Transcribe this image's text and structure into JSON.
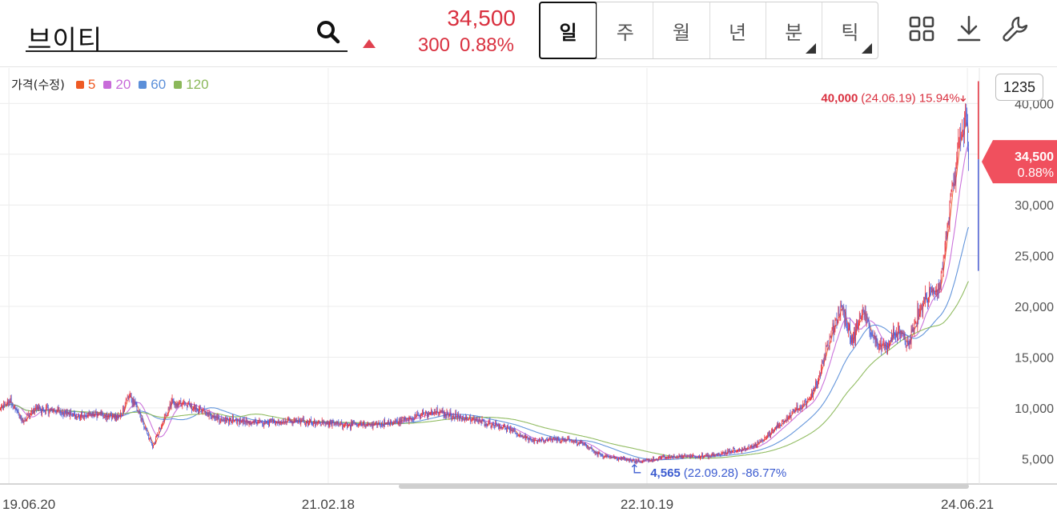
{
  "header": {
    "stock_name": "브이티",
    "price": "34,500",
    "change_value": "300",
    "change_pct": "0.88%",
    "change_color": "#d9303f",
    "direction_icon": "triangle-up-icon",
    "search_icon": "search-icon",
    "period_tabs": [
      {
        "label": "일",
        "active": true,
        "has_submenu": false
      },
      {
        "label": "주",
        "active": false,
        "has_submenu": false
      },
      {
        "label": "월",
        "active": false,
        "has_submenu": false
      },
      {
        "label": "년",
        "active": false,
        "has_submenu": false
      },
      {
        "label": "분",
        "active": false,
        "has_submenu": true
      },
      {
        "label": "틱",
        "active": false,
        "has_submenu": true
      }
    ],
    "tools": [
      "grid-layout-icon",
      "download-icon",
      "wrench-icon"
    ]
  },
  "legend": {
    "title": "가격(수정)",
    "items": [
      {
        "label": "5",
        "color": "#ee5a24"
      },
      {
        "label": "20",
        "color": "#c86bd9"
      },
      {
        "label": "60",
        "color": "#5b8fd9"
      },
      {
        "label": "120",
        "color": "#8bb85a"
      }
    ]
  },
  "count_badge": "1235",
  "current_badge": {
    "price": "34,500",
    "pct": "0.88%",
    "color": "#f0505e"
  },
  "annotations": {
    "high": {
      "value": "40,000",
      "detail": "(24.06.19) 15.94%"
    },
    "low": {
      "value": "4,565",
      "detail": "(22.09.28) -86.77%"
    }
  },
  "chart_data": {
    "type": "candlestick",
    "title": "",
    "xlabel": "",
    "ylabel": "",
    "ylim": [
      2500,
      43500
    ],
    "x_range": [
      "2019-06-03",
      "2024-06-24"
    ],
    "y_ticks": [
      "5,000",
      "10,000",
      "15,000",
      "20,000",
      "25,000",
      "30,000",
      "35,000",
      "40,000"
    ],
    "x_ticks": [
      {
        "label": "19.06.20",
        "date": "2019-06-20"
      },
      {
        "label": "21.02.18",
        "date": "2021-02-18"
      },
      {
        "label": "22.10.19",
        "date": "2022-10-19"
      },
      {
        "label": "24.06.21",
        "date": "2024-06-21"
      }
    ],
    "colors": {
      "up": "#e8323f",
      "down": "#4f63d8"
    },
    "price_path": [
      [
        "2019-06-03",
        9800
      ],
      [
        "2019-06-20",
        10700
      ],
      [
        "2019-07-15",
        8700
      ],
      [
        "2019-08-10",
        9900
      ],
      [
        "2019-09-20",
        9700
      ],
      [
        "2019-11-01",
        9100
      ],
      [
        "2019-12-10",
        9400
      ],
      [
        "2020-01-15",
        9000
      ],
      [
        "2020-02-05",
        11200
      ],
      [
        "2020-02-25",
        9300
      ],
      [
        "2020-03-12",
        7200
      ],
      [
        "2020-03-20",
        6300
      ],
      [
        "2020-04-05",
        8300
      ],
      [
        "2020-04-25",
        10500
      ],
      [
        "2020-05-20",
        10400
      ],
      [
        "2020-06-20",
        9800
      ],
      [
        "2020-07-20",
        8900
      ],
      [
        "2020-09-01",
        8600
      ],
      [
        "2020-10-20",
        8500
      ],
      [
        "2020-12-10",
        8800
      ],
      [
        "2021-02-18",
        8500
      ],
      [
        "2021-04-20",
        8300
      ],
      [
        "2021-06-20",
        8500
      ],
      [
        "2021-08-10",
        9300
      ],
      [
        "2021-09-15",
        9600
      ],
      [
        "2021-11-01",
        9000
      ],
      [
        "2022-01-10",
        8300
      ],
      [
        "2022-02-15",
        7400
      ],
      [
        "2022-03-20",
        6700
      ],
      [
        "2022-05-01",
        6900
      ],
      [
        "2022-06-15",
        6600
      ],
      [
        "2022-07-20",
        5400
      ],
      [
        "2022-09-28",
        4700
      ],
      [
        "2022-11-20",
        5100
      ],
      [
        "2023-01-10",
        5300
      ],
      [
        "2023-02-10",
        5200
      ],
      [
        "2023-03-20",
        5600
      ],
      [
        "2023-05-10",
        6200
      ],
      [
        "2023-06-15",
        7600
      ],
      [
        "2023-07-25",
        9700
      ],
      [
        "2023-08-20",
        10300
      ],
      [
        "2023-09-10",
        12800
      ],
      [
        "2023-10-05",
        17000
      ],
      [
        "2023-10-25",
        20200
      ],
      [
        "2023-11-15",
        16500
      ],
      [
        "2023-12-05",
        19600
      ],
      [
        "2023-12-25",
        16800
      ],
      [
        "2024-01-15",
        15900
      ],
      [
        "2024-02-10",
        17600
      ],
      [
        "2024-02-29",
        16100
      ],
      [
        "2024-03-25",
        20000
      ],
      [
        "2024-04-15",
        21400
      ],
      [
        "2024-05-01",
        22000
      ],
      [
        "2024-05-20",
        30000
      ],
      [
        "2024-06-05",
        35000
      ],
      [
        "2024-06-19",
        38500
      ],
      [
        "2024-06-24",
        34500
      ]
    ],
    "candle_count": 1235,
    "moving_averages": [
      {
        "name": "5",
        "period": 5,
        "color": "#ee5a24"
      },
      {
        "name": "20",
        "period": 20,
        "color": "#c86bd9"
      },
      {
        "name": "60",
        "period": 60,
        "color": "#5b8fd9"
      },
      {
        "name": "120",
        "period": 120,
        "color": "#8bb85a"
      }
    ],
    "high": {
      "value": 40000,
      "date": "2024-06-19",
      "pct_from_current": 15.94
    },
    "low": {
      "value": 4565,
      "date": "2022-09-28",
      "pct_from_current": -86.77
    },
    "current": {
      "value": 34500,
      "change": 300,
      "change_pct": 0.88
    },
    "grid": true,
    "legend_placement": "top-left"
  }
}
